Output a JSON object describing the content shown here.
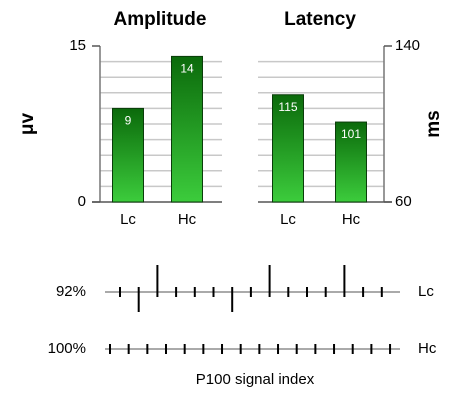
{
  "chart_data": [
    {
      "type": "bar",
      "title": "Amplitude",
      "ylabel": "μv",
      "axis_side": "left",
      "categories": [
        "Lc",
        "Hc"
      ],
      "values": [
        9,
        14
      ],
      "color": "#3ccc3c",
      "ylim": [
        0,
        15
      ],
      "yticks": [
        0,
        15
      ],
      "grid": [
        1.5,
        3,
        4.5,
        6,
        7.5,
        9,
        10.5,
        12,
        13.5
      ]
    },
    {
      "type": "bar",
      "title": "Latency",
      "ylabel": "ms",
      "axis_side": "right",
      "categories": [
        "Lc",
        "Hc"
      ],
      "values": [
        115,
        101
      ],
      "color": "#3ccc3c",
      "ylim": [
        60,
        140
      ],
      "yticks": [
        60,
        140
      ],
      "grid": [
        68,
        76,
        84,
        92,
        100,
        108,
        116,
        124,
        132
      ]
    },
    {
      "type": "tick_strip",
      "xlabel": "P100 signal index",
      "series": [
        {
          "name": "Lc",
          "label": "92%",
          "values": [
            0,
            -1,
            1,
            0,
            0,
            0,
            -1,
            0,
            1,
            0,
            0,
            0,
            1,
            0,
            0
          ]
        },
        {
          "name": "Hc",
          "label": "100%",
          "values": [
            0,
            0,
            0,
            0,
            0,
            0,
            0,
            0,
            0,
            0,
            0,
            0,
            0,
            0,
            0,
            0
          ]
        }
      ]
    }
  ]
}
